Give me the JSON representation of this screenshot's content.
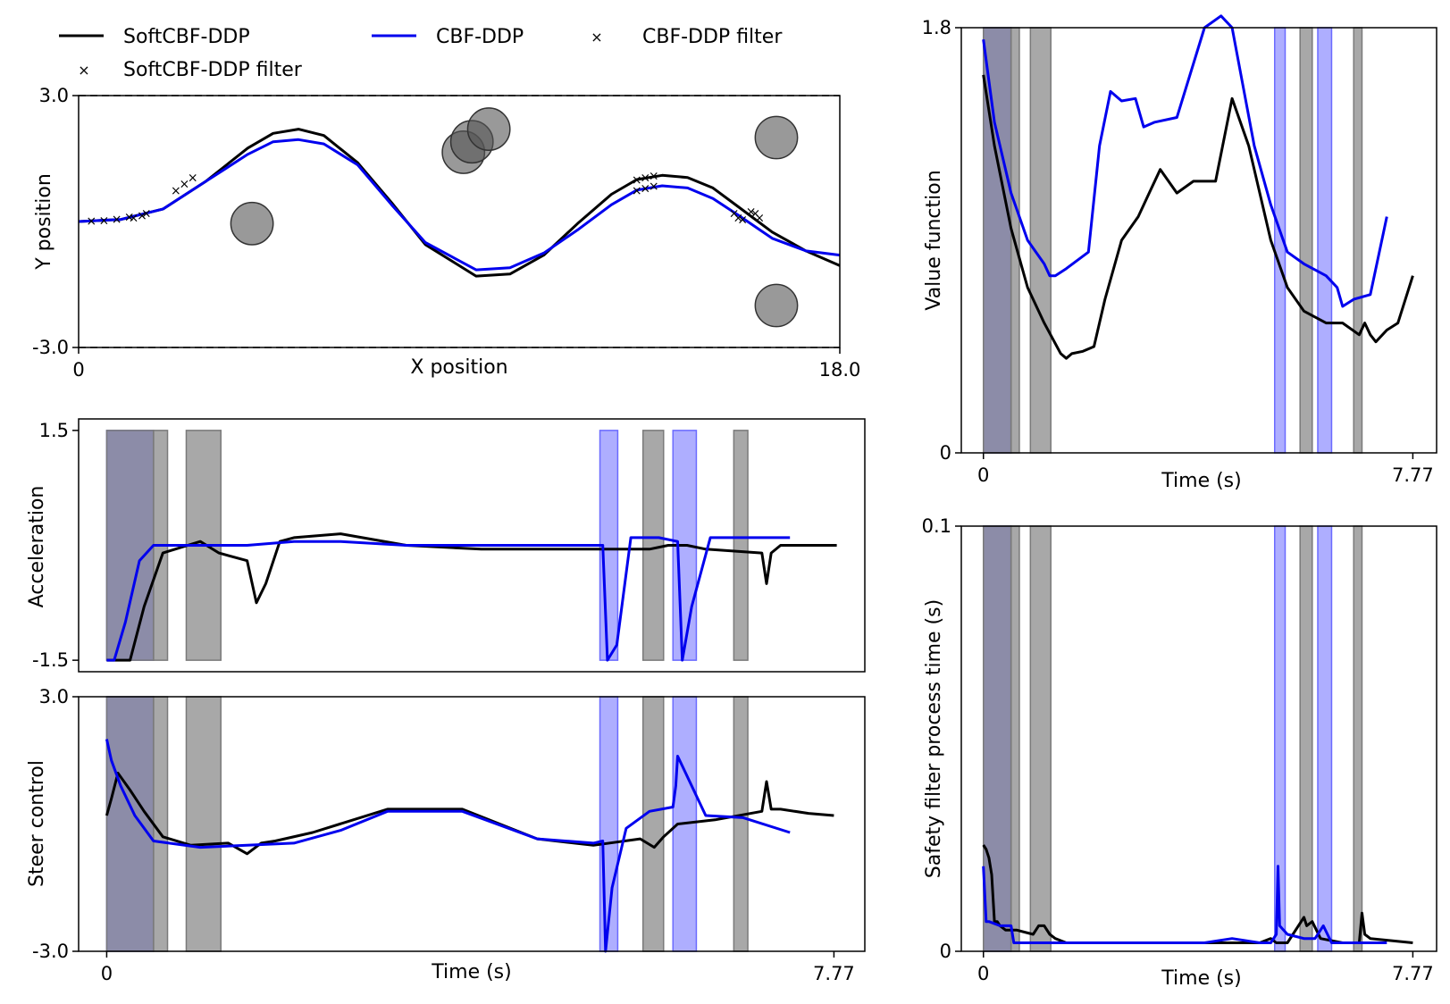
{
  "colors": {
    "soft": "#000000",
    "cbf": "#0000ee",
    "soft_span": "#7a7a7a",
    "cbf_span": "#6b6bff",
    "obstacle": "#555555"
  },
  "legend": [
    {
      "label": "SoftCBF-DDP",
      "kind": "line",
      "color": "#000000"
    },
    {
      "label": "CBF-DDP",
      "kind": "line",
      "color": "#0000ee"
    },
    {
      "label": "CBF-DDP filter",
      "kind": "x",
      "color": "#3344ee"
    },
    {
      "label": "SoftCBF-DDP filter",
      "kind": "x",
      "color": "#333333"
    }
  ],
  "chart_data": [
    {
      "id": "trajectory",
      "type": "line",
      "xlabel": "X position",
      "ylabel": "Y position",
      "xlim": [
        0,
        18
      ],
      "ylim": [
        -3,
        3
      ],
      "xticks": [
        "0",
        "18.0"
      ],
      "yticks": [
        "-3.0",
        "3.0"
      ],
      "xtick_values": [
        0,
        18
      ],
      "ytick_values": [
        -3,
        3
      ],
      "grid": false,
      "boundaries": [
        -3,
        3
      ],
      "obstacles": [
        {
          "x": 4.1,
          "y": -0.05,
          "r": 0.5
        },
        {
          "x": 9.1,
          "y": 1.65,
          "r": 0.5
        },
        {
          "x": 9.3,
          "y": 1.9,
          "r": 0.5
        },
        {
          "x": 9.7,
          "y": 2.2,
          "r": 0.5
        },
        {
          "x": 16.5,
          "y": 2.0,
          "r": 0.5
        },
        {
          "x": 16.5,
          "y": -2.0,
          "r": 0.5
        }
      ],
      "series": [
        {
          "name": "SoftCBF-DDP",
          "color": "#000000",
          "x": [
            0,
            1,
            2,
            3,
            4,
            4.6,
            5.2,
            5.8,
            6.6,
            7.4,
            8.2,
            9.4,
            10.2,
            11,
            11.8,
            12.6,
            13.2,
            13.8,
            14.4,
            15,
            15.6,
            16.4,
            17.2,
            18
          ],
          "y": [
            0,
            0.05,
            0.3,
            0.95,
            1.75,
            2.1,
            2.2,
            2.05,
            1.4,
            0.45,
            -0.55,
            -1.3,
            -1.25,
            -0.8,
            -0.05,
            0.65,
            1.0,
            1.1,
            1.05,
            0.8,
            0.35,
            -0.25,
            -0.7,
            -1.05
          ]
        },
        {
          "name": "CBF-DDP",
          "color": "#0000ee",
          "x": [
            0,
            1,
            2,
            3,
            4,
            4.6,
            5.2,
            5.8,
            6.6,
            7.4,
            8.2,
            9.4,
            10.2,
            11,
            11.8,
            12.6,
            13.2,
            13.8,
            14.4,
            15,
            15.6,
            16.4,
            17.2,
            18
          ],
          "y": [
            0,
            0.05,
            0.3,
            0.95,
            1.6,
            1.9,
            1.95,
            1.85,
            1.35,
            0.4,
            -0.5,
            -1.15,
            -1.1,
            -0.75,
            -0.2,
            0.4,
            0.75,
            0.85,
            0.8,
            0.55,
            0.15,
            -0.4,
            -0.7,
            -0.8
          ]
        }
      ],
      "markers": [
        {
          "name": "SoftCBF-DDP filter",
          "color": "#333333",
          "points": [
            [
              1.3,
              0.1
            ],
            [
              1.5,
              0.15
            ],
            [
              1.6,
              0.2
            ],
            [
              2.3,
              0.75
            ],
            [
              2.5,
              0.9
            ],
            [
              2.7,
              1.05
            ],
            [
              13.2,
              1.0
            ],
            [
              13.4,
              1.05
            ],
            [
              13.6,
              1.1
            ],
            [
              15.9,
              0.25
            ],
            [
              16.0,
              0.2
            ],
            [
              16.1,
              0.1
            ]
          ]
        },
        {
          "name": "CBF-DDP filter",
          "color": "#3344ee",
          "points": [
            [
              0.3,
              0.02
            ],
            [
              0.6,
              0.03
            ],
            [
              0.9,
              0.06
            ],
            [
              1.2,
              0.12
            ],
            [
              13.2,
              0.75
            ],
            [
              13.4,
              0.8
            ],
            [
              13.6,
              0.85
            ],
            [
              15.5,
              0.2
            ],
            [
              15.6,
              0.1
            ],
            [
              15.7,
              0.05
            ]
          ]
        }
      ]
    },
    {
      "id": "acceleration",
      "type": "line",
      "xlabel": "",
      "ylabel": "Acceleration",
      "xlim": [
        -0.3,
        8.1
      ],
      "ylim": [
        -1.65,
        1.65
      ],
      "yticks": [
        "-1.5",
        "1.5"
      ],
      "ytick_values": [
        -1.5,
        1.5
      ],
      "xticks": [],
      "series": [
        {
          "name": "SoftCBF-DDP",
          "color": "#000000",
          "x": [
            0,
            0.15,
            0.25,
            0.4,
            0.6,
            1.0,
            1.2,
            1.5,
            1.6,
            1.7,
            1.85,
            2.0,
            2.5,
            3.2,
            4.0,
            4.8,
            5.4,
            5.8,
            6.0,
            6.2,
            6.4,
            7.0,
            7.05,
            7.1,
            7.2,
            7.8
          ],
          "y": [
            -1.5,
            -1.5,
            -1.5,
            -0.8,
            -0.1,
            0.05,
            -0.1,
            -0.2,
            -0.75,
            -0.5,
            0.05,
            0.1,
            0.15,
            0.0,
            -0.05,
            -0.05,
            -0.05,
            -0.05,
            0.0,
            0.0,
            -0.05,
            -0.1,
            -0.5,
            -0.1,
            0.0,
            0.0
          ]
        },
        {
          "name": "CBF-DDP",
          "color": "#0000ee",
          "x": [
            0,
            0.08,
            0.2,
            0.35,
            0.5,
            1.0,
            1.5,
            2.0,
            2.5,
            3.2,
            4.0,
            4.8,
            5.3,
            5.35,
            5.45,
            5.6,
            5.9,
            6.1,
            6.15,
            6.25,
            6.45,
            7.0,
            7.3
          ],
          "y": [
            -1.5,
            -1.5,
            -1.0,
            -0.2,
            0.0,
            0.0,
            0.0,
            0.05,
            0.05,
            0.0,
            0.0,
            0.0,
            0.0,
            -1.5,
            -1.3,
            0.1,
            0.1,
            0.05,
            -1.5,
            -0.8,
            0.1,
            0.1,
            0.1
          ]
        }
      ]
    },
    {
      "id": "steer",
      "type": "line",
      "xlabel": "Time (s)",
      "ylabel": "Steer control",
      "xlim": [
        -0.3,
        8.1
      ],
      "ylim": [
        -3,
        3
      ],
      "xticks": [
        "0",
        "7.77"
      ],
      "xtick_values": [
        0,
        7.77
      ],
      "yticks": [
        "-3.0",
        "3.0"
      ],
      "ytick_values": [
        -3,
        3
      ],
      "series": [
        {
          "name": "SoftCBF-DDP",
          "color": "#000000",
          "x": [
            0,
            0.05,
            0.12,
            0.25,
            0.4,
            0.6,
            0.9,
            1.3,
            1.5,
            1.65,
            1.8,
            2.2,
            3.0,
            3.8,
            4.6,
            5.2,
            5.7,
            5.85,
            5.95,
            6.1,
            6.5,
            7.0,
            7.05,
            7.1,
            7.2,
            7.5,
            7.77
          ],
          "y": [
            0.2,
            0.6,
            1.2,
            0.8,
            0.3,
            -0.3,
            -0.5,
            -0.45,
            -0.7,
            -0.45,
            -0.4,
            -0.2,
            0.35,
            0.35,
            -0.35,
            -0.5,
            -0.35,
            -0.55,
            -0.3,
            0.0,
            0.1,
            0.3,
            1.0,
            0.35,
            0.35,
            0.25,
            0.2
          ]
        },
        {
          "name": "CBF-DDP",
          "color": "#0000ee",
          "x": [
            0,
            0.05,
            0.15,
            0.3,
            0.5,
            1.0,
            1.5,
            2.0,
            2.5,
            3.0,
            3.8,
            4.6,
            5.2,
            5.3,
            5.33,
            5.4,
            5.55,
            5.8,
            6.05,
            6.08,
            6.1,
            6.4,
            6.8,
            7.3
          ],
          "y": [
            2.0,
            1.5,
            0.9,
            0.2,
            -0.4,
            -0.55,
            -0.5,
            -0.45,
            -0.15,
            0.3,
            0.3,
            -0.35,
            -0.45,
            -0.4,
            -3.0,
            -1.5,
            -0.1,
            0.3,
            0.4,
            0.9,
            1.6,
            0.2,
            0.15,
            -0.2
          ]
        }
      ]
    },
    {
      "id": "value",
      "type": "line",
      "xlabel": "Time (s)",
      "ylabel": "Value function",
      "xlim": [
        -0.4,
        8.2
      ],
      "ylim": [
        0,
        1.8
      ],
      "xticks": [
        "0",
        "7.77"
      ],
      "xtick_values": [
        0,
        7.77
      ],
      "yticks": [
        "0",
        "1.8"
      ],
      "ytick_values": [
        0,
        1.8
      ],
      "series": [
        {
          "name": "SoftCBF-DDP",
          "color": "#000000",
          "x": [
            0,
            0.2,
            0.5,
            0.8,
            1.1,
            1.4,
            1.5,
            1.6,
            1.8,
            2.0,
            2.2,
            2.5,
            2.8,
            3.0,
            3.2,
            3.5,
            3.8,
            4.2,
            4.5,
            4.8,
            5.2,
            5.5,
            5.8,
            6.2,
            6.5,
            6.8,
            6.9,
            7.0,
            7.1,
            7.3,
            7.5,
            7.77
          ],
          "y": [
            1.6,
            1.3,
            0.95,
            0.7,
            0.55,
            0.42,
            0.4,
            0.42,
            0.43,
            0.45,
            0.65,
            0.9,
            1.0,
            1.1,
            1.2,
            1.1,
            1.15,
            1.15,
            1.5,
            1.3,
            0.9,
            0.7,
            0.6,
            0.55,
            0.55,
            0.5,
            0.55,
            0.5,
            0.47,
            0.52,
            0.55,
            0.75
          ]
        },
        {
          "name": "CBF-DDP",
          "color": "#0000ee",
          "x": [
            0,
            0.2,
            0.5,
            0.8,
            1.1,
            1.2,
            1.3,
            1.5,
            1.9,
            2.1,
            2.3,
            2.5,
            2.75,
            2.9,
            3.1,
            3.5,
            4.0,
            4.3,
            4.5,
            4.7,
            4.9,
            5.2,
            5.5,
            5.8,
            6.2,
            6.4,
            6.5,
            6.7,
            7.0,
            7.3
          ],
          "y": [
            1.75,
            1.4,
            1.1,
            0.9,
            0.8,
            0.75,
            0.75,
            0.78,
            0.85,
            1.3,
            1.53,
            1.49,
            1.5,
            1.38,
            1.4,
            1.42,
            1.8,
            1.85,
            1.8,
            1.55,
            1.3,
            1.05,
            0.85,
            0.8,
            0.75,
            0.7,
            0.62,
            0.65,
            0.67,
            1.0
          ]
        }
      ]
    },
    {
      "id": "filtertime",
      "type": "line",
      "xlabel": "Time (s)",
      "ylabel": "Safety filter process time (s)",
      "xlim": [
        -0.4,
        8.2
      ],
      "ylim": [
        0,
        0.1
      ],
      "xticks": [
        "0",
        "7.77"
      ],
      "xtick_values": [
        0,
        7.77
      ],
      "yticks": [
        "0",
        "0.1"
      ],
      "ytick_values": [
        0,
        0.1
      ],
      "series": [
        {
          "name": "SoftCBF-DDP",
          "color": "#000000",
          "x": [
            0,
            0.05,
            0.1,
            0.15,
            0.2,
            0.25,
            0.3,
            0.4,
            0.6,
            0.9,
            1.0,
            1.1,
            1.2,
            1.3,
            1.5,
            2.0,
            3.0,
            4.0,
            5.0,
            5.2,
            5.3,
            5.5,
            5.8,
            5.85,
            5.95,
            6.1,
            6.5,
            6.8,
            6.85,
            6.9,
            7.0,
            7.77
          ],
          "y": [
            0.025,
            0.024,
            0.022,
            0.018,
            0.007,
            0.007,
            0.006,
            0.005,
            0.005,
            0.004,
            0.006,
            0.006,
            0.004,
            0.003,
            0.002,
            0.002,
            0.002,
            0.002,
            0.002,
            0.003,
            0.002,
            0.002,
            0.008,
            0.006,
            0.007,
            0.003,
            0.002,
            0.002,
            0.009,
            0.004,
            0.003,
            0.002
          ]
        },
        {
          "name": "CBF-DDP",
          "color": "#0000ee",
          "x": [
            0,
            0.05,
            0.1,
            0.3,
            0.5,
            0.55,
            1.0,
            2.0,
            3.0,
            4.0,
            4.5,
            5.0,
            5.2,
            5.3,
            5.33,
            5.36,
            5.5,
            5.8,
            6.0,
            6.1,
            6.15,
            6.3,
            6.5,
            7.0,
            7.3
          ],
          "y": [
            0.02,
            0.007,
            0.007,
            0.006,
            0.006,
            0.002,
            0.002,
            0.002,
            0.002,
            0.002,
            0.003,
            0.002,
            0.002,
            0.004,
            0.02,
            0.006,
            0.004,
            0.003,
            0.003,
            0.005,
            0.006,
            0.002,
            0.002,
            0.002,
            0.002
          ]
        }
      ]
    }
  ],
  "spans": [
    {
      "start": 0.0,
      "end": 0.5,
      "kind": "cbf"
    },
    {
      "start": 0.0,
      "end": 0.5,
      "kind": "soft"
    },
    {
      "start": 0.5,
      "end": 0.65,
      "kind": "soft"
    },
    {
      "start": 0.85,
      "end": 1.22,
      "kind": "soft"
    },
    {
      "start": 5.27,
      "end": 5.46,
      "kind": "cbf"
    },
    {
      "start": 5.73,
      "end": 5.95,
      "kind": "soft"
    },
    {
      "start": 6.05,
      "end": 6.3,
      "kind": "cbf"
    },
    {
      "start": 6.7,
      "end": 6.85,
      "kind": "soft"
    }
  ]
}
